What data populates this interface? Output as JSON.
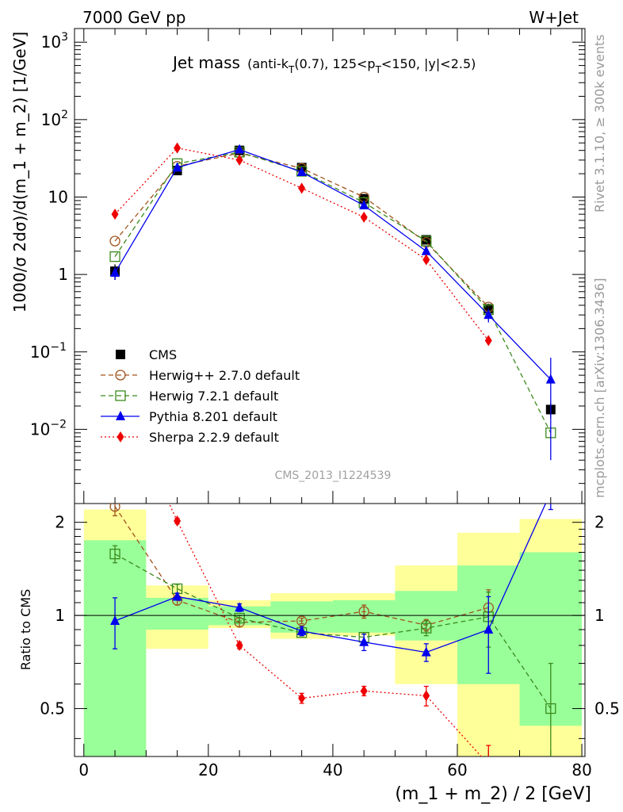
{
  "header": {
    "left": "7000 GeV pp",
    "right": "W+Jet"
  },
  "title": {
    "main": "Jet mass",
    "anti": "(anti-k",
    "anti_sub": "T",
    "anti_rest": "(0.7), 125<p",
    "pt_sub": "T",
    "pt_rest": "<150, |y|<2.5)"
  },
  "side_labels": {
    "rivet": "Rivet 3.1.10, ≥ 300k events",
    "mcplots": "mcplots.cern.ch [arXiv:1306.3436]"
  },
  "watermark": "CMS_2013_I1224539",
  "axes": {
    "ylabel_top": "1000/σ 2dσ)/d(m_1 + m_2) [1/GeV]",
    "ylabel_bottom": "Ratio to CMS",
    "xlabel": "(m_1 + m_2) / 2 [GeV]",
    "x_ticks": [
      "0",
      "20",
      "40",
      "60",
      "80"
    ],
    "y_top_ticks": [
      {
        "base": "10",
        "exp": "3"
      },
      {
        "base": "10",
        "exp": "2"
      },
      {
        "base": "10",
        "exp": ""
      },
      {
        "base": "1",
        "exp": ""
      },
      {
        "base": "10",
        "exp": "−1"
      },
      {
        "base": "10",
        "exp": "−2"
      }
    ],
    "y_bottom_ticks": [
      "2",
      "1",
      "0.5"
    ]
  },
  "legend": [
    "CMS",
    "Herwig++ 2.7.0 default",
    "Herwig 7.2.1 default",
    "Pythia 8.201 default",
    "Sherpa 2.2.9 default"
  ],
  "chart_data": {
    "type": "line",
    "x": [
      5,
      15,
      25,
      35,
      45,
      55,
      65,
      75
    ],
    "xlim": [
      -1.5,
      80.5
    ],
    "ylim_top": [
      0.0011,
      1500
    ],
    "yscale_top": "log",
    "ylim_bottom": [
      0.35,
      2.3
    ],
    "yscale_bottom": "log",
    "bin_edges": [
      0,
      10,
      20,
      30,
      40,
      50,
      60,
      70,
      80
    ],
    "series": [
      {
        "name": "CMS",
        "color": "#000000",
        "marker": "square-filled",
        "y": [
          1.1,
          22,
          40,
          24,
          9.5,
          2.8,
          0.36,
          0.018
        ],
        "err": [
          0.25,
          2,
          2,
          1.5,
          0.8,
          0.3,
          0.06,
          0.004
        ]
      },
      {
        "name": "Herwig++ 2.7.0 default",
        "color": "#a0521c",
        "marker": "circle-open",
        "dash": "6,4",
        "y": [
          2.7,
          25,
          37,
          23.5,
          10,
          2.6,
          0.38,
          null
        ],
        "ratio": [
          2.25,
          1.12,
          0.95,
          0.96,
          1.03,
          0.93,
          1.06,
          null
        ],
        "ratio_err": [
          0.15,
          0.04,
          0.03,
          0.02,
          0.05,
          0.04,
          0.15,
          null
        ]
      },
      {
        "name": "Herwig 7.2.1 default",
        "color": "#3a8a1c",
        "marker": "square-open",
        "dash": "6,4",
        "y": [
          1.7,
          27,
          38,
          21.5,
          8.5,
          2.7,
          0.35,
          0.009
        ],
        "ratio": [
          1.58,
          1.22,
          0.98,
          0.88,
          0.85,
          0.91,
          0.99,
          0.5
        ],
        "ratio_err": [
          0.1,
          0.04,
          0.02,
          0.02,
          0.03,
          0.05,
          0.2,
          0.2
        ]
      },
      {
        "name": "Pythia 8.201 default",
        "color": "#0000ee",
        "marker": "triangle-filled",
        "dash": "",
        "y": [
          1.05,
          24,
          41,
          21,
          7.8,
          2.0,
          0.3,
          0.044
        ],
        "err": [
          0.2,
          1.5,
          2,
          1.5,
          0.7,
          0.3,
          0.06,
          0.04
        ],
        "ratio": [
          0.96,
          1.15,
          1.06,
          0.89,
          0.82,
          0.76,
          0.9,
          2.5
        ],
        "ratio_err": [
          0.18,
          0.03,
          0.03,
          0.03,
          0.05,
          0.05,
          0.25,
          0.3
        ]
      },
      {
        "name": "Sherpa 2.2.9 default",
        "color": "#ee0000",
        "marker": "diamond-filled",
        "dash": "2,3",
        "y": [
          6.0,
          43,
          30,
          13,
          5.5,
          1.55,
          0.14,
          null
        ],
        "ratio": [
          5.5,
          2.02,
          0.8,
          0.54,
          0.57,
          0.55,
          0.33,
          null
        ],
        "ratio_err": [
          0.3,
          0.04,
          0.02,
          0.02,
          0.02,
          0.04,
          0.05,
          null
        ]
      }
    ],
    "bands": {
      "yellow": [
        [
          0.3,
          2.2
        ],
        [
          0.78,
          1.25
        ],
        [
          0.91,
          1.12
        ],
        [
          0.84,
          1.18
        ],
        [
          0.86,
          1.18
        ],
        [
          0.6,
          1.45
        ],
        [
          0.3,
          1.85
        ],
        [
          0.3,
          2.05
        ]
      ],
      "green": [
        [
          0.3,
          1.75
        ],
        [
          0.9,
          1.14
        ],
        [
          0.93,
          1.07
        ],
        [
          0.88,
          1.11
        ],
        [
          0.88,
          1.12
        ],
        [
          0.83,
          1.2
        ],
        [
          0.6,
          1.45
        ],
        [
          0.44,
          1.6
        ]
      ],
      "colors": {
        "yellow": "#ffff99",
        "green": "#99ff99"
      }
    }
  }
}
